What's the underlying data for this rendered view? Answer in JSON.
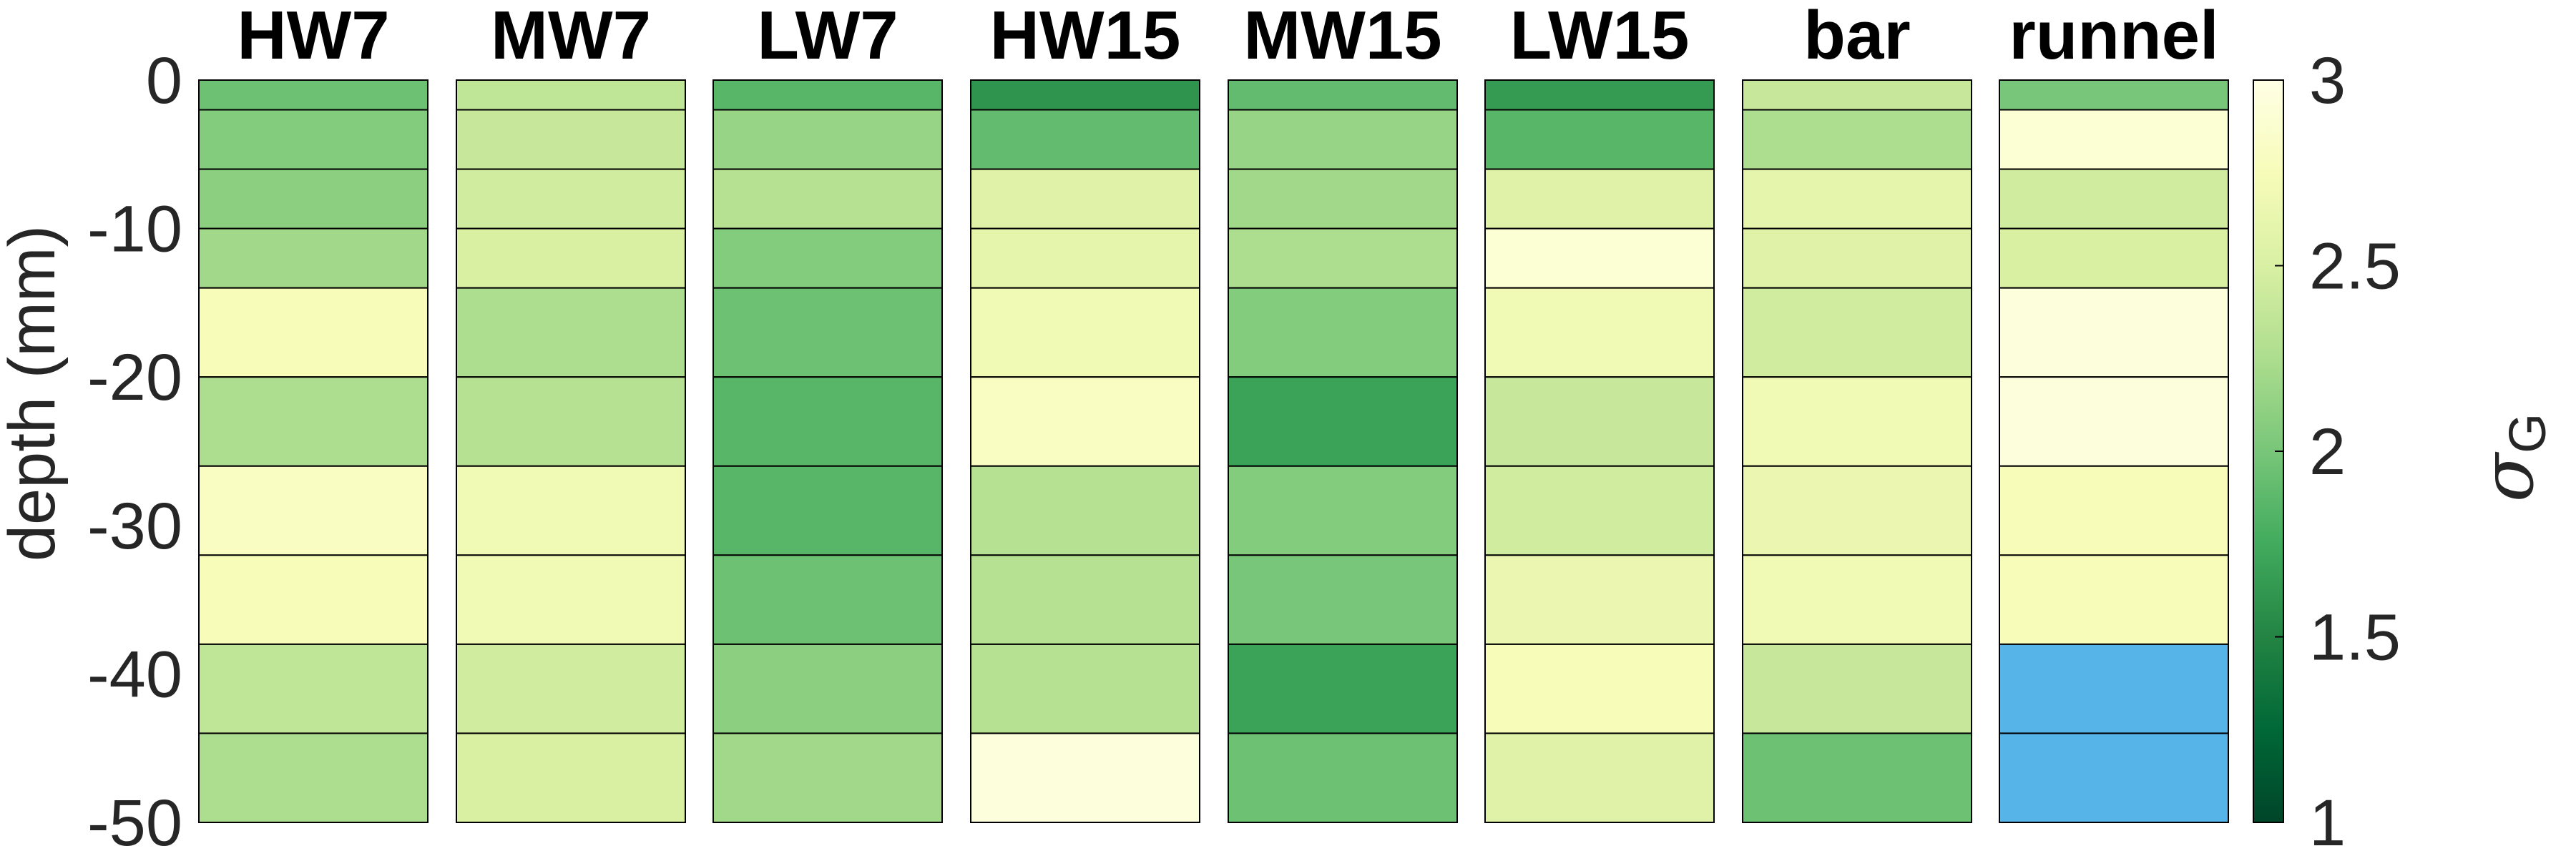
{
  "chart_data": {
    "type": "heatmap",
    "ylabel": "depth (mm)",
    "ylim": [
      -50,
      0
    ],
    "yticks": [
      0,
      -10,
      -20,
      -30,
      -40,
      -50
    ],
    "ytick_labels": [
      "0",
      "-10",
      "-20",
      "-30",
      "-40",
      "-50"
    ],
    "layer_boundaries": [
      0,
      -2,
      -6,
      -10,
      -14,
      -20,
      -26,
      -32,
      -38,
      -44,
      -50
    ],
    "colorbar": {
      "label": "σ",
      "label_subscript": "G",
      "range": [
        1,
        3
      ],
      "ticks": [
        1,
        1.5,
        2,
        2.5,
        3
      ],
      "tick_labels": [
        "1",
        "1.5",
        "2",
        "2.5",
        "3"
      ],
      "colormap": "YlGn_r"
    },
    "out_of_range_color": "#56b4e9",
    "columns": [
      {
        "name": "HW7",
        "values": [
          1.95,
          2.05,
          2.1,
          2.2,
          2.75,
          2.25,
          2.8,
          2.75,
          2.35,
          2.25
        ]
      },
      {
        "name": "MW7",
        "values": [
          2.35,
          2.4,
          2.45,
          2.5,
          2.25,
          2.3,
          2.7,
          2.7,
          2.45,
          2.5
        ]
      },
      {
        "name": "LW7",
        "values": [
          1.85,
          2.15,
          2.3,
          2.05,
          1.95,
          1.85,
          1.85,
          1.95,
          2.1,
          2.2
        ]
      },
      {
        "name": "HW15",
        "values": [
          1.6,
          1.9,
          2.55,
          2.6,
          2.7,
          2.8,
          2.3,
          2.3,
          2.3,
          2.95
        ]
      },
      {
        "name": "MW15",
        "values": [
          1.9,
          2.15,
          2.2,
          2.25,
          2.05,
          1.7,
          2.05,
          2.0,
          1.7,
          1.95
        ]
      },
      {
        "name": "LW15",
        "values": [
          1.65,
          1.85,
          2.55,
          2.9,
          2.7,
          2.4,
          2.45,
          2.65,
          2.75,
          2.55
        ]
      },
      {
        "name": "bar",
        "values": [
          2.4,
          2.25,
          2.6,
          2.55,
          2.45,
          2.7,
          2.65,
          2.7,
          2.4,
          1.95
        ]
      },
      {
        "name": "runnel",
        "values": [
          2.0,
          2.9,
          2.45,
          2.5,
          2.95,
          2.95,
          2.75,
          2.75,
          null,
          null
        ]
      }
    ]
  }
}
